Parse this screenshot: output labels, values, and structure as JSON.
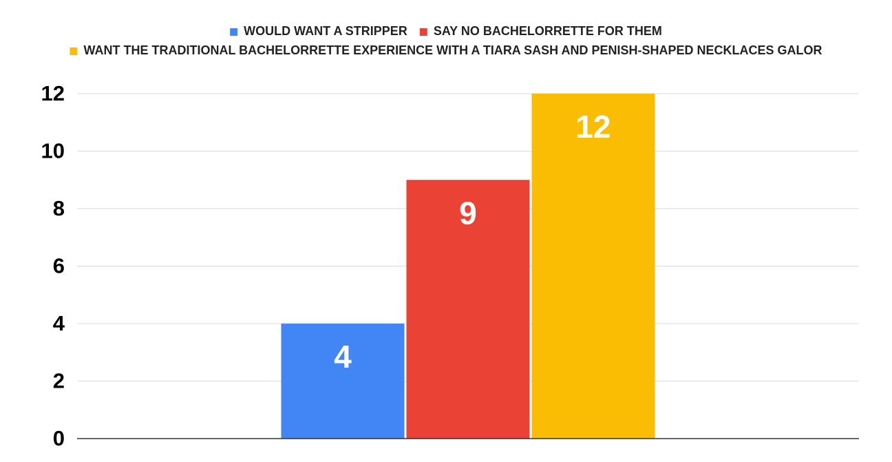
{
  "chart_data": {
    "type": "bar",
    "categories": [
      null
    ],
    "series": [
      {
        "name": "WOULD WANT A STRIPPER",
        "color": "#4285f4",
        "values": [
          4
        ]
      },
      {
        "name": "SAY NO BACHELORRETTE FOR THEM",
        "color": "#ea4335",
        "values": [
          9
        ]
      },
      {
        "name": "WANT THE TRADITIONAL BACHELORRETTE EXPERIENCE WITH A TIARA SASH AND PENISH-SHAPED NECKLACES GALOR",
        "color": "#fbbc04",
        "values": [
          12
        ]
      }
    ],
    "ylim": [
      0,
      12
    ],
    "yticks": [
      0,
      2,
      4,
      6,
      8,
      10,
      12
    ],
    "grid": true,
    "legend": "top"
  }
}
